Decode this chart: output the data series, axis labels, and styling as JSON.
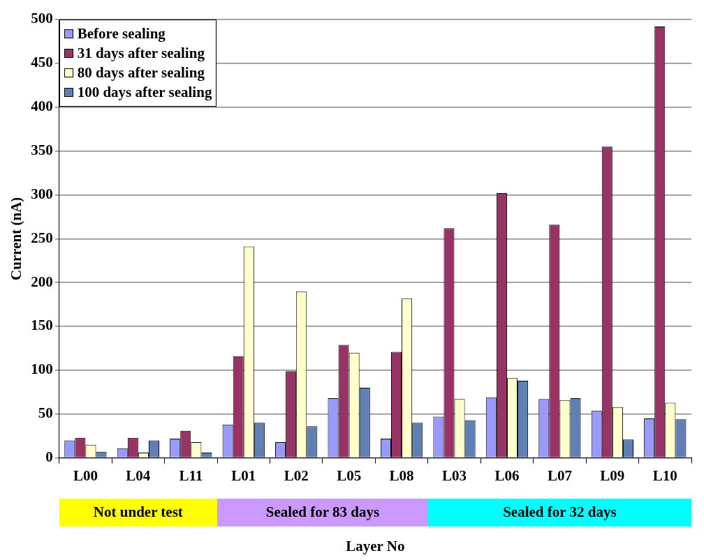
{
  "chart_data": {
    "type": "bar",
    "xlabel": "Layer No",
    "ylabel": "Current (nA)",
    "categories": [
      "L00",
      "L04",
      "L11",
      "L01",
      "L02",
      "L05",
      "L08",
      "L03",
      "L06",
      "L07",
      "L09",
      "L10"
    ],
    "series": [
      {
        "name": "Before sealing",
        "color": "#9999ff",
        "values": [
          20,
          11,
          22,
          38,
          18,
          68,
          22,
          47,
          69,
          67,
          54,
          45
        ]
      },
      {
        "name": "31 days after sealing",
        "color": "#993366",
        "values": [
          23,
          23,
          31,
          116,
          99,
          129,
          121,
          262,
          302,
          266,
          355,
          492
        ]
      },
      {
        "name": "80 days after sealing",
        "color": "#ffffcc",
        "values": [
          15,
          6,
          18,
          241,
          190,
          120,
          182,
          67,
          91,
          66,
          58,
          63
        ]
      },
      {
        "name": "100 days after sealing",
        "color": "#5f7fb5",
        "values": [
          7,
          20,
          6,
          40,
          36,
          80,
          40,
          43,
          88,
          68,
          21,
          44
        ]
      }
    ],
    "ylim": [
      0,
      500
    ],
    "yticks": [
      0,
      50,
      100,
      150,
      200,
      250,
      300,
      350,
      400,
      450,
      500
    ],
    "grid": "y",
    "legend": "top left",
    "annotations": [
      "Not under test",
      "Sealed for 83 days",
      "Sealed for 32 days"
    ]
  }
}
